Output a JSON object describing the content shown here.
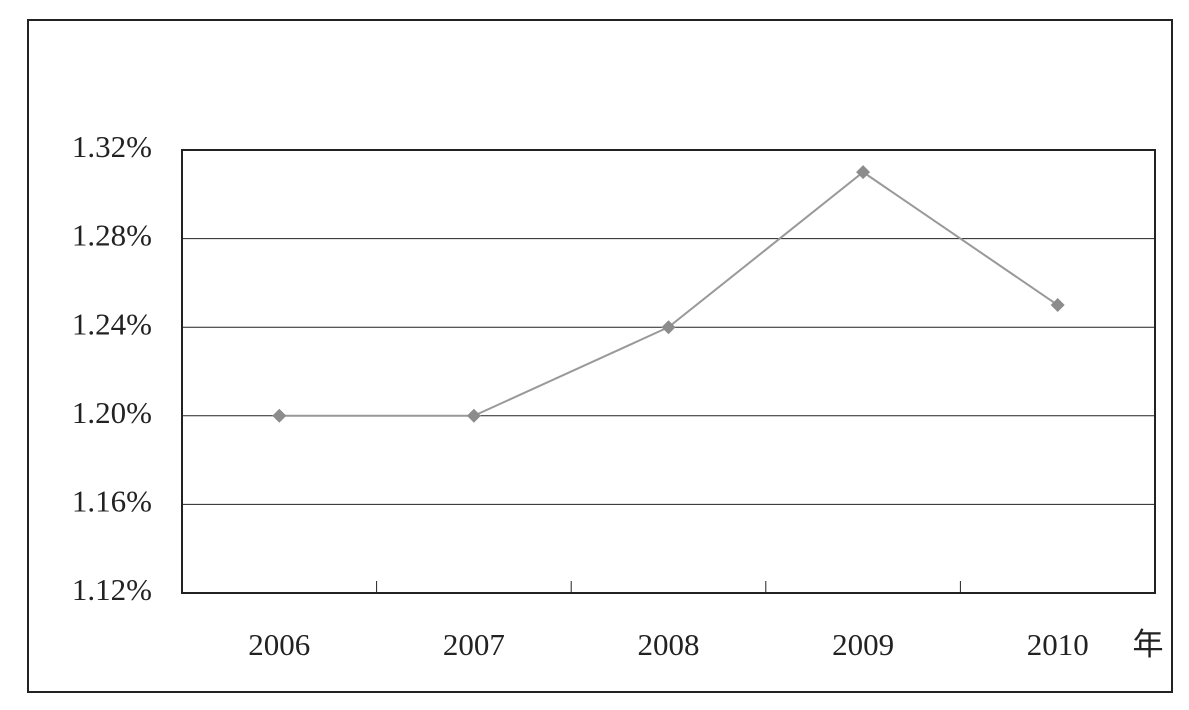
{
  "chart_data": {
    "type": "line",
    "categories": [
      "2006",
      "2007",
      "2008",
      "2009",
      "2010"
    ],
    "values": [
      1.2,
      1.2,
      1.24,
      1.31,
      1.25
    ],
    "color": "#8c8c8c",
    "xlabel": "年",
    "ylim": [
      1.12,
      1.32
    ],
    "yticks": [
      {
        "value": 1.12,
        "label": "1.12%"
      },
      {
        "value": 1.16,
        "label": "1.16%"
      },
      {
        "value": 1.2,
        "label": "1.20%"
      },
      {
        "value": 1.24,
        "label": "1.24%"
      },
      {
        "value": 1.28,
        "label": "1.28%"
      },
      {
        "value": 1.32,
        "label": "1.32%"
      }
    ],
    "grid": true
  }
}
